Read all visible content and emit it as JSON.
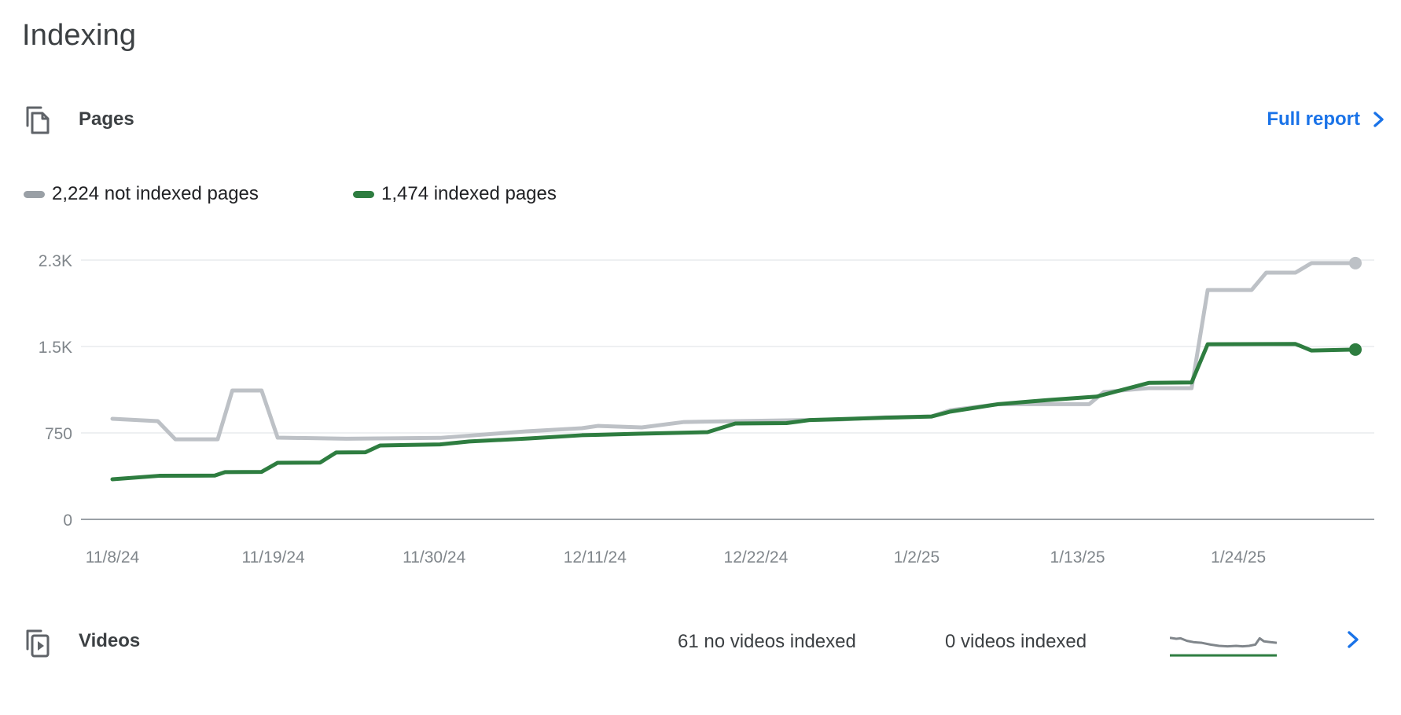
{
  "page": {
    "title": "Indexing"
  },
  "pages_card": {
    "title": "Pages",
    "full_report_label": "Full report",
    "legend": [
      {
        "label": "2,224 not indexed pages",
        "color": "#9aa0a6"
      },
      {
        "label": "1,474 indexed pages",
        "color": "#2e7d40"
      }
    ]
  },
  "chart_data": {
    "type": "line",
    "x_axis": "date",
    "x_tick_labels": [
      "11/8/24",
      "11/19/24",
      "11/30/24",
      "12/11/24",
      "12/22/24",
      "1/2/25",
      "1/13/25",
      "1/24/25"
    ],
    "x_tick_days": [
      0,
      11,
      22,
      33,
      44,
      55,
      66,
      77
    ],
    "x_domain_days": [
      0,
      85
    ],
    "y_ticks": [
      {
        "v": 0,
        "label": "0"
      },
      {
        "v": 750,
        "label": "750"
      },
      {
        "v": 1500,
        "label": "1.5K"
      },
      {
        "v": 2250,
        "label": "2.3K"
      }
    ],
    "ylim": [
      0,
      2400
    ],
    "grid": true,
    "series": [
      {
        "name": "not indexed pages",
        "final_value": 2224,
        "color": "#bdc1c6",
        "points": [
          [
            0,
            873
          ],
          [
            3.1,
            852
          ],
          [
            4.3,
            695
          ],
          [
            7.2,
            695
          ],
          [
            8.2,
            1118
          ],
          [
            10.2,
            1118
          ],
          [
            11.3,
            709
          ],
          [
            16,
            700
          ],
          [
            22.4,
            707
          ],
          [
            28.3,
            764
          ],
          [
            32.1,
            791
          ],
          [
            33.2,
            811
          ],
          [
            36.2,
            798
          ],
          [
            39.1,
            845
          ],
          [
            42.6,
            852
          ],
          [
            49.7,
            866
          ],
          [
            52.9,
            886
          ],
          [
            56,
            892
          ],
          [
            57.3,
            947
          ],
          [
            60.6,
            1000
          ],
          [
            66.8,
            1000
          ],
          [
            67.8,
            1105
          ],
          [
            70.9,
            1139
          ],
          [
            73.8,
            1139
          ],
          [
            74.9,
            1990
          ],
          [
            77.9,
            1990
          ],
          [
            78.9,
            2141
          ],
          [
            80.9,
            2141
          ],
          [
            82,
            2224
          ],
          [
            85,
            2224
          ]
        ]
      },
      {
        "name": "indexed pages",
        "final_value": 1474,
        "color": "#2e7d40",
        "points": [
          [
            0,
            348
          ],
          [
            3.2,
            378
          ],
          [
            7,
            380
          ],
          [
            7.7,
            410
          ],
          [
            10.2,
            412
          ],
          [
            11.3,
            491
          ],
          [
            14.2,
            493
          ],
          [
            15.3,
            580
          ],
          [
            17.3,
            582
          ],
          [
            18.3,
            641
          ],
          [
            22.4,
            650
          ],
          [
            24.4,
            676
          ],
          [
            28.5,
            702
          ],
          [
            32.1,
            730
          ],
          [
            36,
            743
          ],
          [
            40.7,
            757
          ],
          [
            42.6,
            832
          ],
          [
            46.1,
            835
          ],
          [
            47.7,
            862
          ],
          [
            52.9,
            882
          ],
          [
            56,
            892
          ],
          [
            57.3,
            935
          ],
          [
            60.6,
            1000
          ],
          [
            63.9,
            1035
          ],
          [
            67.3,
            1065
          ],
          [
            70.9,
            1185
          ],
          [
            73.8,
            1188
          ],
          [
            74.9,
            1520
          ],
          [
            80.9,
            1522
          ],
          [
            82,
            1465
          ],
          [
            85,
            1474
          ]
        ]
      }
    ],
    "colors": {
      "gridline": "#e9ebed",
      "axis_line": "#9aa0a6",
      "tick_label": "#80868b"
    }
  },
  "videos_card": {
    "title": "Videos",
    "not_indexed_text": "61 no videos indexed",
    "indexed_text": "0 videos indexed",
    "spark": {
      "gray_color": "#80868b",
      "green_color": "#2e7d40",
      "gray_points": [
        [
          0,
          0.18
        ],
        [
          0.06,
          0.22
        ],
        [
          0.1,
          0.2
        ],
        [
          0.16,
          0.3
        ],
        [
          0.22,
          0.35
        ],
        [
          0.3,
          0.38
        ],
        [
          0.38,
          0.45
        ],
        [
          0.46,
          0.5
        ],
        [
          0.54,
          0.52
        ],
        [
          0.62,
          0.5
        ],
        [
          0.68,
          0.52
        ],
        [
          0.74,
          0.5
        ],
        [
          0.8,
          0.45
        ],
        [
          0.84,
          0.2
        ],
        [
          0.88,
          0.32
        ],
        [
          0.94,
          0.35
        ],
        [
          1,
          0.38
        ]
      ],
      "green_y": 0.88
    }
  },
  "colors": {
    "blue": "#1a73e8",
    "icon_gray": "#5f6368",
    "text_dark": "#3c4043"
  }
}
